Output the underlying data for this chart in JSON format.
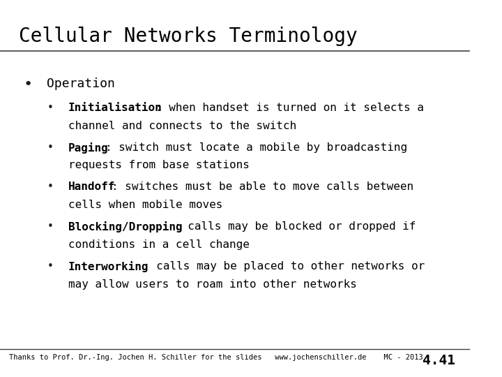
{
  "title": "Cellular Networks Terminology",
  "background_color": "#ffffff",
  "text_color": "#000000",
  "title_fontsize": 20,
  "footer_text": "Thanks to Prof. Dr.-Ing. Jochen H. Schiller for the slides   www.jochenschiller.de    MC - 2013",
  "footer_page": "4.41",
  "main_bullet": "Operation",
  "sub_bullets": [
    {
      "bold": "Initialisation",
      "rest": ": when handset is turned on it selects a\nchannel and connects to the switch"
    },
    {
      "bold": "Paging",
      "rest": ": switch must locate a mobile by broadcasting\nrequests from base stations"
    },
    {
      "bold": "Handoff",
      "rest": ": switches must be able to move calls between\ncells when mobile moves"
    },
    {
      "bold": "Blocking/Dropping",
      "rest": ": calls may be blocked or dropped if\nconditions in a cell change"
    },
    {
      "bold": "Interworking",
      "rest": ": calls may be placed to other networks or\nmay allow users to roam into other networks"
    }
  ],
  "title_line_color": "#404040",
  "footer_line_color": "#404040",
  "bullet_color": "#1a1a2e"
}
